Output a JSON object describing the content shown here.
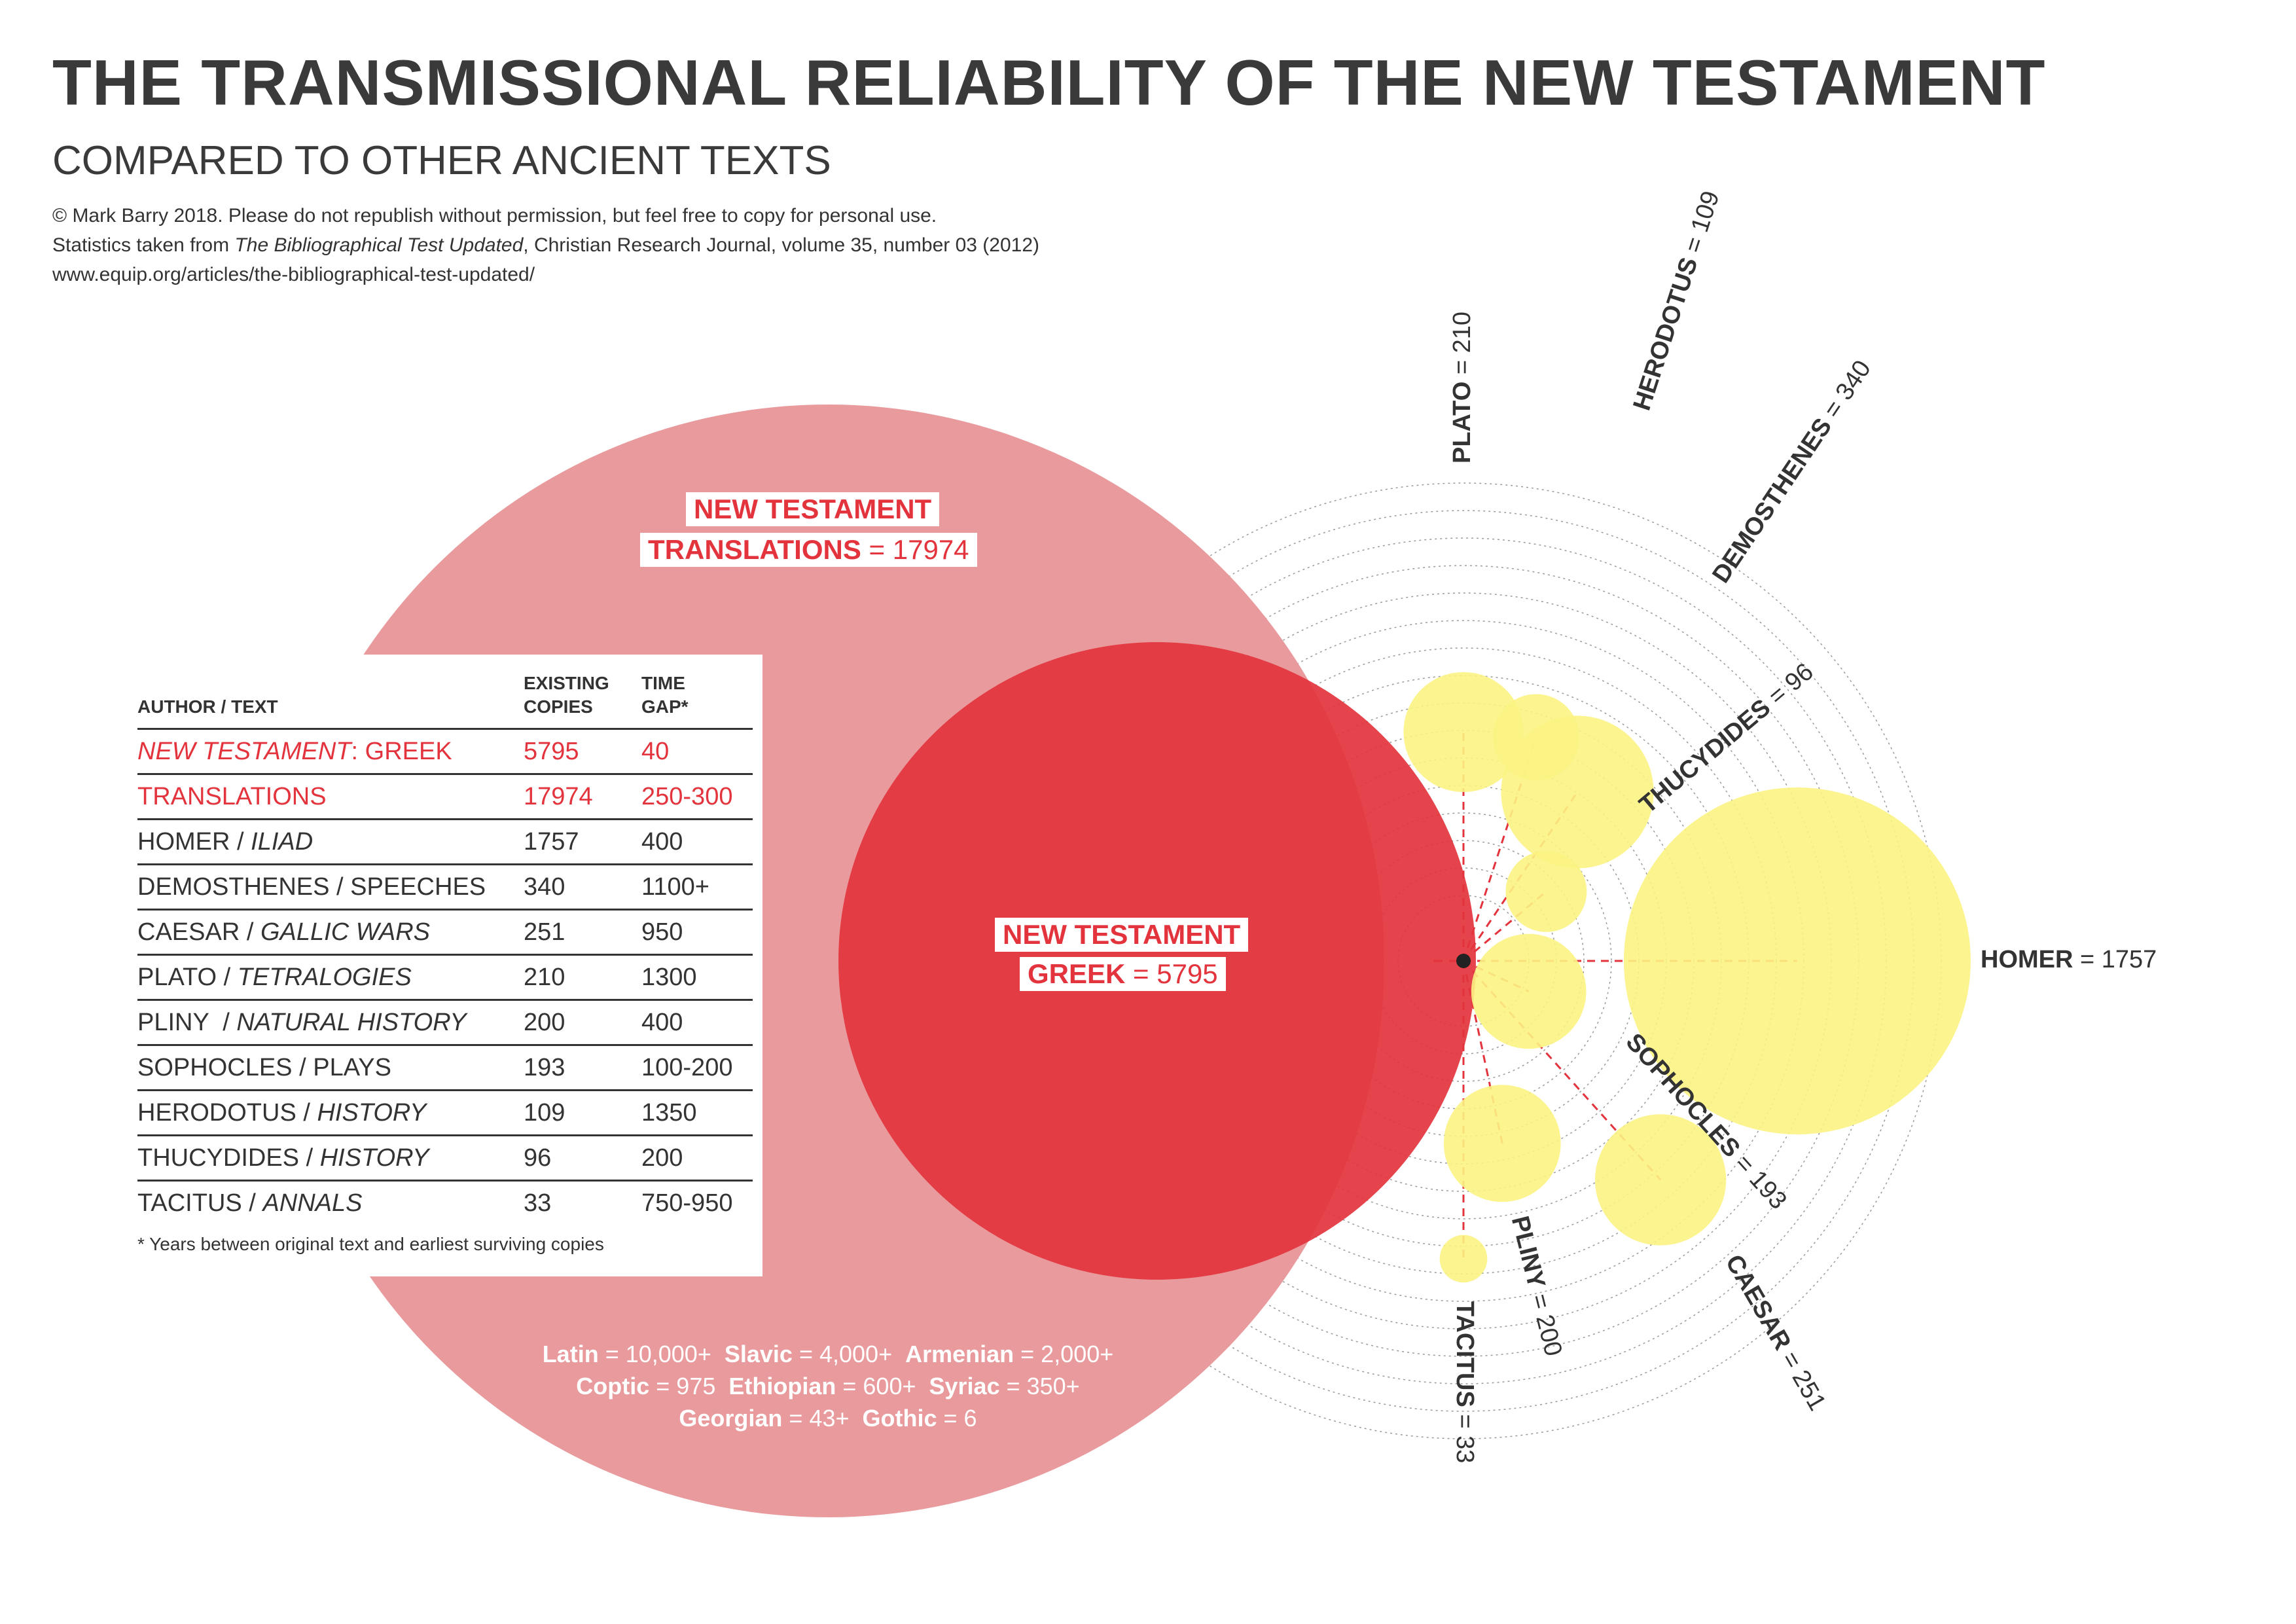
{
  "title": "THE TRANSMISSIONAL RELIABILITY OF THE NEW TESTAMENT",
  "subtitle": "COMPARED TO OTHER ANCIENT TEXTS",
  "credits": {
    "line1": "© Mark Barry 2018.  Please do not republish without permission, but feel free to copy for personal use.",
    "line2_prefix": "Statistics taken from ",
    "line2_title": "The Bibliographical Test Updated",
    "line2_suffix": ", Christian Research Journal, volume 35, number 03 (2012)",
    "line3": "www.equip.org/articles/the-bibliographical-test-updated/"
  },
  "colors": {
    "translations": "#e99a9d",
    "greek": "#e3343e",
    "yellow": "#fbf383",
    "label_red": "#e3343e",
    "text": "#333333"
  },
  "nt_translations_label": {
    "line1": "NEW TESTAMENT",
    "line2_bold": "TRANSLATIONS",
    "line2_value": " = 17974"
  },
  "nt_greek_label": {
    "line1": "NEW TESTAMENT",
    "line2_bold": "GREEK",
    "line2_value": " = 5795"
  },
  "languages": {
    "latin_name": "Latin",
    "latin_value": " = 10,000+  ",
    "slavic_name": "Slavic",
    "slavic_value": " = 4,000+  ",
    "armenian_name": "Armenian",
    "armenian_value": " = 2,000+",
    "coptic_name": "Coptic",
    "coptic_value": " = 975  ",
    "ethiopian_name": "Ethiopian",
    "ethiopian_value": " = 600+  ",
    "syriac_name": "Syriac",
    "syriac_value": " = 350+",
    "georgian_name": "Georgian",
    "georgian_value": " = 43+  ",
    "gothic_name": "Gothic",
    "gothic_value": " = 6"
  },
  "table": {
    "headers": {
      "author_text": "AUTHOR / TEXT",
      "copies_1": "EXISTING",
      "copies_2": "COPIES",
      "gap_1": "TIME",
      "gap_2": "GAP*"
    },
    "rows": [
      {
        "author": "NEW TESTAMENT",
        "sep": ": ",
        "text": "GREEK",
        "copies": "5795",
        "gap": "40"
      },
      {
        "author": "TRANSLATIONS",
        "sep": "",
        "text": "",
        "copies": "17974",
        "gap": "250-300"
      },
      {
        "author": "HOMER",
        "sep": " / ",
        "text": "ILIAD",
        "copies": "1757",
        "gap": "400"
      },
      {
        "author": "DEMOSTHENES",
        "sep": " / ",
        "text": "SPEECHES",
        "copies": "340",
        "gap": "1100+"
      },
      {
        "author": "CAESAR",
        "sep": " / ",
        "text": "GALLIC WARS",
        "copies": "251",
        "gap": "950"
      },
      {
        "author": "PLATO",
        "sep": " / ",
        "text": "TETRALOGIES",
        "copies": "210",
        "gap": "1300"
      },
      {
        "author": "PLINY",
        "sep": "  / ",
        "text": "NATURAL HISTORY",
        "copies": "200",
        "gap": "400"
      },
      {
        "author": "SOPHOCLES",
        "sep": " / ",
        "text": "PLAYS",
        "copies": "193",
        "gap": "100-200"
      },
      {
        "author": "HERODOTUS",
        "sep": " / ",
        "text": "HISTORY",
        "copies": "109",
        "gap": "1350"
      },
      {
        "author": "THUCYDIDES",
        "sep": " / ",
        "text": "HISTORY",
        "copies": "96",
        "gap": "200"
      },
      {
        "author": "TACITUS",
        "sep": " / ",
        "text": "ANNALS",
        "copies": "33",
        "gap": "750-950"
      }
    ],
    "footnote": "* Years between original text and earliest surviving copies"
  },
  "chart_data": {
    "type": "bubble",
    "title": "THE TRANSMISSIONAL RELIABILITY OF THE NEW TESTAMENT",
    "subtitle": "COMPARED TO OTHER ANCIENT TEXTS",
    "value_label": "Existing copies",
    "time_gap_max_years": 1400,
    "new_testament": [
      {
        "name": "TRANSLATIONS",
        "copies": 17974
      },
      {
        "name": "GREEK",
        "copies": 5795
      }
    ],
    "texts": [
      {
        "author": "PLATO",
        "copies": 210,
        "time_gap_years": 1300,
        "direction": "up"
      },
      {
        "author": "HERODOTUS",
        "copies": 109,
        "time_gap_years": 1350,
        "direction": "up-right"
      },
      {
        "author": "DEMOSTHENES",
        "copies": 340,
        "time_gap_years": 1100,
        "direction": "up-right"
      },
      {
        "author": "THUCYDIDES",
        "copies": 96,
        "time_gap_years": 200,
        "direction": "up-right"
      },
      {
        "author": "HOMER",
        "copies": 1757,
        "time_gap_years": 400,
        "direction": "right"
      },
      {
        "author": "SOPHOCLES",
        "copies": 193,
        "time_gap_years": 150,
        "direction": "down-right"
      },
      {
        "author": "CAESAR",
        "copies": 251,
        "time_gap_years": 950,
        "direction": "down-right"
      },
      {
        "author": "PLINY",
        "copies": 200,
        "time_gap_years": 400,
        "direction": "down"
      },
      {
        "author": "TACITUS",
        "copies": 33,
        "time_gap_years": 850,
        "direction": "down"
      }
    ]
  }
}
